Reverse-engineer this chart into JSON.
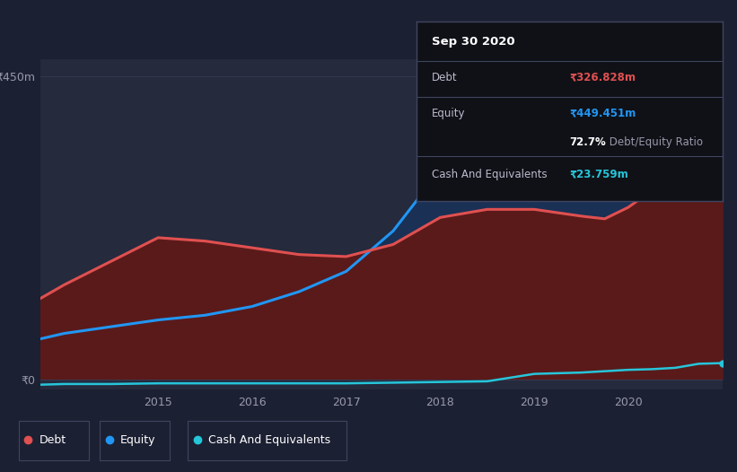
{
  "background_color": "#1c2033",
  "plot_bg_color": "#252a3d",
  "grid_color": "#353a52",
  "years": [
    2013.75,
    2014.0,
    2014.5,
    2015.0,
    2015.5,
    2016.0,
    2016.5,
    2017.0,
    2017.5,
    2018.0,
    2018.5,
    2019.0,
    2019.5,
    2019.75,
    2020.0,
    2020.25,
    2020.5,
    2020.75,
    2021.0
  ],
  "debt": [
    120,
    140,
    175,
    210,
    205,
    195,
    185,
    182,
    200,
    240,
    252,
    252,
    242,
    238,
    255,
    280,
    310,
    327,
    327
  ],
  "equity": [
    60,
    68,
    78,
    88,
    95,
    108,
    130,
    160,
    220,
    310,
    355,
    375,
    368,
    375,
    400,
    420,
    440,
    449,
    449
  ],
  "cash": [
    -8,
    -7,
    -7,
    -6,
    -6,
    -6,
    -6,
    -6,
    -5,
    -4,
    -3,
    8,
    10,
    12,
    14,
    15,
    17,
    23,
    24
  ],
  "debt_color": "#e05050",
  "equity_color": "#2196f3",
  "cash_color": "#26c6da",
  "debt_fill_color": "#5a1a1a",
  "equity_fill_color": "#1a3055",
  "ylim": [
    -15,
    475
  ],
  "ytick_positions": [
    0,
    450
  ],
  "ytick_labels": [
    "₹0",
    "₹450m"
  ],
  "xtick_positions": [
    2015,
    2016,
    2017,
    2018,
    2019,
    2020
  ],
  "tooltip_title": "Sep 30 2020",
  "tooltip_rows": [
    {
      "label": "Debt",
      "value": "₹326.828m",
      "value_color": "#e05050"
    },
    {
      "label": "Equity",
      "value": "₹449.451m",
      "value_color": "#2196f3"
    },
    {
      "label": "",
      "value": "72.7% Debt/Equity Ratio",
      "value_color": null
    },
    {
      "label": "Cash And Equivalents",
      "value": "₹23.759m",
      "value_color": "#26c6da"
    }
  ],
  "ratio_bold": "72.7%",
  "ratio_rest": " Debt/Equity Ratio",
  "legend_labels": [
    "Debt",
    "Equity",
    "Cash And Equivalents"
  ],
  "legend_colors": [
    "#e05050",
    "#2196f3",
    "#26c6da"
  ]
}
